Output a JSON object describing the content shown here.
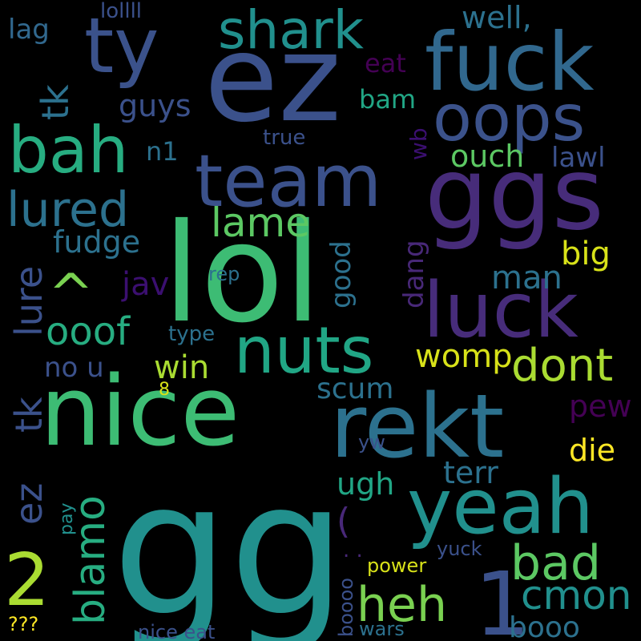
{
  "background": "#000000",
  "palette": [
    "#440154",
    "#472c7a",
    "#3b518b",
    "#2c718e",
    "#21908d",
    "#27ad81",
    "#5cc863",
    "#aadc32",
    "#fde725"
  ],
  "words": [
    {
      "text": "gg",
      "color": "#21908d"
    },
    {
      "text": "lol",
      "color": "#3dbc74"
    },
    {
      "text": "ez",
      "color": "#3b518b"
    },
    {
      "text": "nice",
      "color": "#3dbc74"
    },
    {
      "text": "ggs",
      "color": "#472c7a"
    },
    {
      "text": "rekt",
      "color": "#2c718e"
    },
    {
      "text": "yeah",
      "color": "#21908d"
    },
    {
      "text": "fuck",
      "color": "#31688e"
    },
    {
      "text": "luck",
      "color": "#472c7a"
    },
    {
      "text": "team",
      "color": "#3b518b"
    },
    {
      "text": "oops",
      "color": "#3b528b"
    },
    {
      "text": "nuts",
      "color": "#21a685"
    },
    {
      "text": "ty",
      "color": "#3b528b"
    },
    {
      "text": "bah",
      "color": "#27ad81"
    },
    {
      "text": "shark",
      "color": "#21908d"
    },
    {
      "text": "1",
      "color": "#3b518b"
    },
    {
      "text": "2",
      "color": "#aadc32"
    },
    {
      "text": "heh",
      "color": "#7ad151"
    },
    {
      "text": "bad",
      "color": "#5cc863"
    },
    {
      "text": "cmon",
      "color": "#21908d"
    },
    {
      "text": "dont",
      "color": "#aadc32"
    },
    {
      "text": "lured",
      "color": "#2c718e"
    },
    {
      "text": "lure",
      "color": "#3b518b"
    },
    {
      "text": "tk",
      "color": "#2c718e"
    },
    {
      "text": "tk",
      "color": "#3b518b"
    },
    {
      "text": "ez",
      "color": "#3b518b"
    },
    {
      "text": "blamo",
      "color": "#27ad81"
    },
    {
      "text": "^",
      "color": "#7ad151"
    },
    {
      "text": "ooof",
      "color": "#27ad81"
    },
    {
      "text": "lame",
      "color": "#5cc863"
    },
    {
      "text": "fudge",
      "color": "#2c718e"
    },
    {
      "text": "jav",
      "color": "#3b0f70"
    },
    {
      "text": "win",
      "color": "#aadc32"
    },
    {
      "text": "no u",
      "color": "#3b518b"
    },
    {
      "text": "womp",
      "color": "#d8e219"
    },
    {
      "text": "man",
      "color": "#2c718e"
    },
    {
      "text": "big",
      "color": "#d8e219"
    },
    {
      "text": "good",
      "color": "#2c718e"
    },
    {
      "text": "dang",
      "color": "#482878"
    },
    {
      "text": "scum",
      "color": "#2c718e"
    },
    {
      "text": "pew",
      "color": "#440154"
    },
    {
      "text": "die",
      "color": "#fde725"
    },
    {
      "text": "terr",
      "color": "#2c718e"
    },
    {
      "text": "ugh",
      "color": "#21a685"
    },
    {
      "text": "(",
      "color": "#482878"
    },
    {
      "text": ". .",
      "color": "#482878"
    },
    {
      "text": "booo",
      "color": "#2c718e"
    },
    {
      "text": "ouch",
      "color": "#5cc863"
    },
    {
      "text": "lawl",
      "color": "#3b518b"
    },
    {
      "text": "bam",
      "color": "#21a685"
    },
    {
      "text": "eat",
      "color": "#440154"
    },
    {
      "text": "well,",
      "color": "#2c718e"
    },
    {
      "text": "guys",
      "color": "#3b518b"
    },
    {
      "text": "n1",
      "color": "#2c718e"
    },
    {
      "text": "wb",
      "color": "#3b0f70"
    },
    {
      "text": "lag",
      "color": "#31688e"
    },
    {
      "text": "lollll",
      "color": "#3b518b"
    },
    {
      "text": "true",
      "color": "#3b518b"
    },
    {
      "text": "rep",
      "color": "#2c718e"
    },
    {
      "text": "type",
      "color": "#2c718e"
    },
    {
      "text": "8",
      "color": "#d8e219"
    },
    {
      "text": "yw",
      "color": "#3b518b"
    },
    {
      "text": "pay",
      "color": "#21908d"
    },
    {
      "text": "yuck",
      "color": "#3b518b"
    },
    {
      "text": "power",
      "color": "#d8e219"
    },
    {
      "text": "boooo",
      "color": "#3b518b"
    },
    {
      "text": "wars",
      "color": "#2c718e"
    },
    {
      "text": "nice eat",
      "color": "#3b518b"
    },
    {
      "text": "???",
      "color": "#fde725"
    }
  ]
}
